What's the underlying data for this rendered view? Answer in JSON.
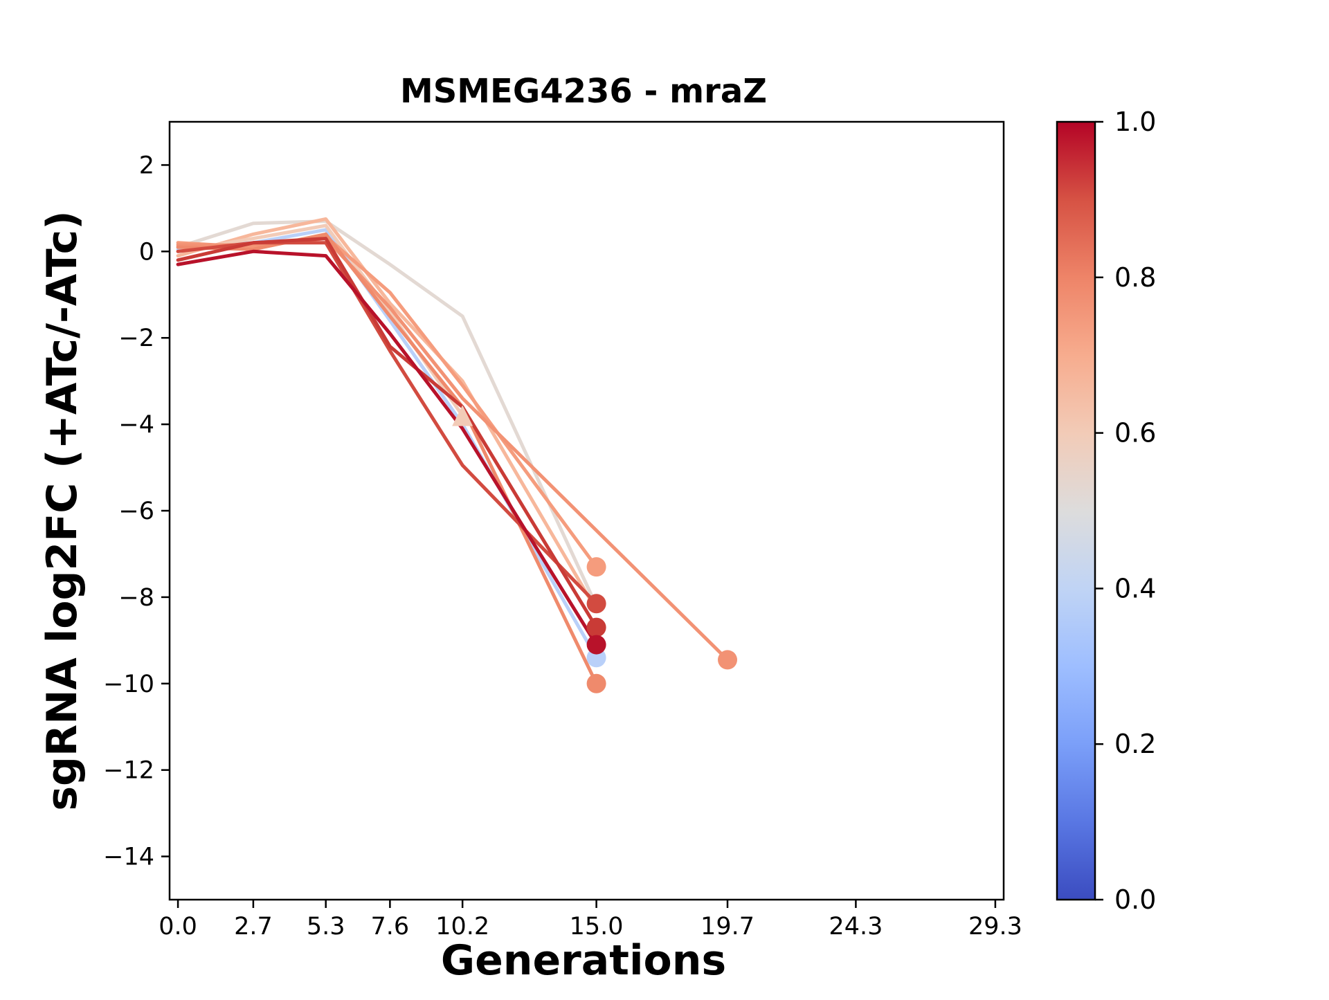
{
  "chart_data": {
    "type": "line",
    "title": "MSMEG4236 - mraZ",
    "xlabel": "Generations",
    "ylabel": "sgRNA log2FC (+ATc/-ATc)",
    "xlim": [
      -0.3,
      29.6
    ],
    "ylim": [
      -15,
      3
    ],
    "x_ticks": [
      0.0,
      2.7,
      5.3,
      7.6,
      10.2,
      15.0,
      19.7,
      24.3,
      29.3
    ],
    "x_tick_labels": [
      "0.0",
      "2.7",
      "5.3",
      "7.6",
      "10.2",
      "15.0",
      "19.7",
      "24.3",
      "29.3"
    ],
    "y_ticks": [
      2,
      0,
      -2,
      -4,
      -6,
      -8,
      -10,
      -12,
      -14
    ],
    "y_tick_labels": [
      "2",
      "0",
      "−2",
      "−4",
      "−6",
      "−8",
      "−10",
      "−12",
      "−14"
    ],
    "grid": false,
    "legend": "none",
    "colorbar": {
      "colormap": "coolwarm",
      "range": [
        0.0,
        1.0
      ],
      "ticks": [
        0.0,
        0.2,
        0.4,
        0.6,
        0.8,
        1.0
      ],
      "tick_labels": [
        "0.0",
        "0.2",
        "0.4",
        "0.6",
        "0.8",
        "1.0"
      ],
      "colors": [
        "#3b4cc0",
        "#5977e3",
        "#7b9ff9",
        "#9ebeff",
        "#c0d4f5",
        "#dddcdc",
        "#f2cbb7",
        "#f7ac8e",
        "#ee8468",
        "#d65244",
        "#b40426"
      ]
    },
    "series": [
      {
        "color": "#e3d9d3",
        "x": [
          0.0,
          2.7,
          5.3,
          7.6,
          10.2,
          15.0
        ],
        "y": [
          0.1,
          0.65,
          0.7,
          -0.3,
          -1.5,
          -8.2
        ],
        "end_marker": "none"
      },
      {
        "color": "#f7b79b",
        "x": [
          0.0,
          2.7,
          5.3,
          7.6,
          10.2,
          15.0
        ],
        "y": [
          -0.1,
          0.4,
          0.75,
          -1.2,
          -3.0,
          -8.3
        ],
        "end_marker": "none"
      },
      {
        "color": "#b9d0f9",
        "x": [
          0.0,
          2.7,
          5.3,
          7.6,
          10.2,
          15.0
        ],
        "y": [
          0.05,
          0.2,
          0.5,
          -1.6,
          -4.0,
          -9.4
        ],
        "end_marker": "circle"
      },
      {
        "color": "#f2cbb7",
        "x": [
          0.0,
          2.7,
          5.3,
          7.6,
          10.2
        ],
        "y": [
          0.0,
          0.3,
          0.6,
          -1.4,
          -3.8
        ],
        "end_marker": "triangle"
      },
      {
        "color": "#f59c7d",
        "x": [
          0.0,
          2.7,
          5.3,
          7.6,
          10.2,
          15.0
        ],
        "y": [
          0.2,
          0.1,
          0.35,
          -0.95,
          -3.1,
          -7.3
        ],
        "end_marker": "circle"
      },
      {
        "color": "#f29274",
        "x": [
          0.0,
          2.7,
          5.3,
          7.6,
          10.2,
          19.7
        ],
        "y": [
          0.15,
          0.15,
          0.3,
          -1.3,
          -3.4,
          -9.45
        ],
        "end_marker": "circle"
      },
      {
        "color": "#ef8a6c",
        "x": [
          0.0,
          2.7,
          5.3,
          7.6,
          10.2,
          15.0
        ],
        "y": [
          0.1,
          0.05,
          0.4,
          -1.5,
          -3.6,
          -10.0
        ],
        "end_marker": "circle"
      },
      {
        "color": "#d24b40",
        "x": [
          0.0,
          2.7,
          5.3,
          7.6,
          10.2,
          15.0
        ],
        "y": [
          0.0,
          0.2,
          0.2,
          -2.3,
          -4.95,
          -8.15
        ],
        "end_marker": "circle"
      },
      {
        "color": "#c93b36",
        "x": [
          0.0,
          2.7,
          5.3,
          7.6,
          10.2,
          15.0
        ],
        "y": [
          -0.2,
          0.2,
          0.3,
          -2.2,
          -3.6,
          -8.7
        ],
        "end_marker": "circle"
      },
      {
        "color": "#b8122a",
        "x": [
          0.0,
          2.7,
          5.3,
          7.6,
          10.2,
          15.0
        ],
        "y": [
          -0.3,
          0.0,
          -0.1,
          -1.9,
          -4.1,
          -9.1
        ],
        "end_marker": "circle"
      }
    ]
  }
}
